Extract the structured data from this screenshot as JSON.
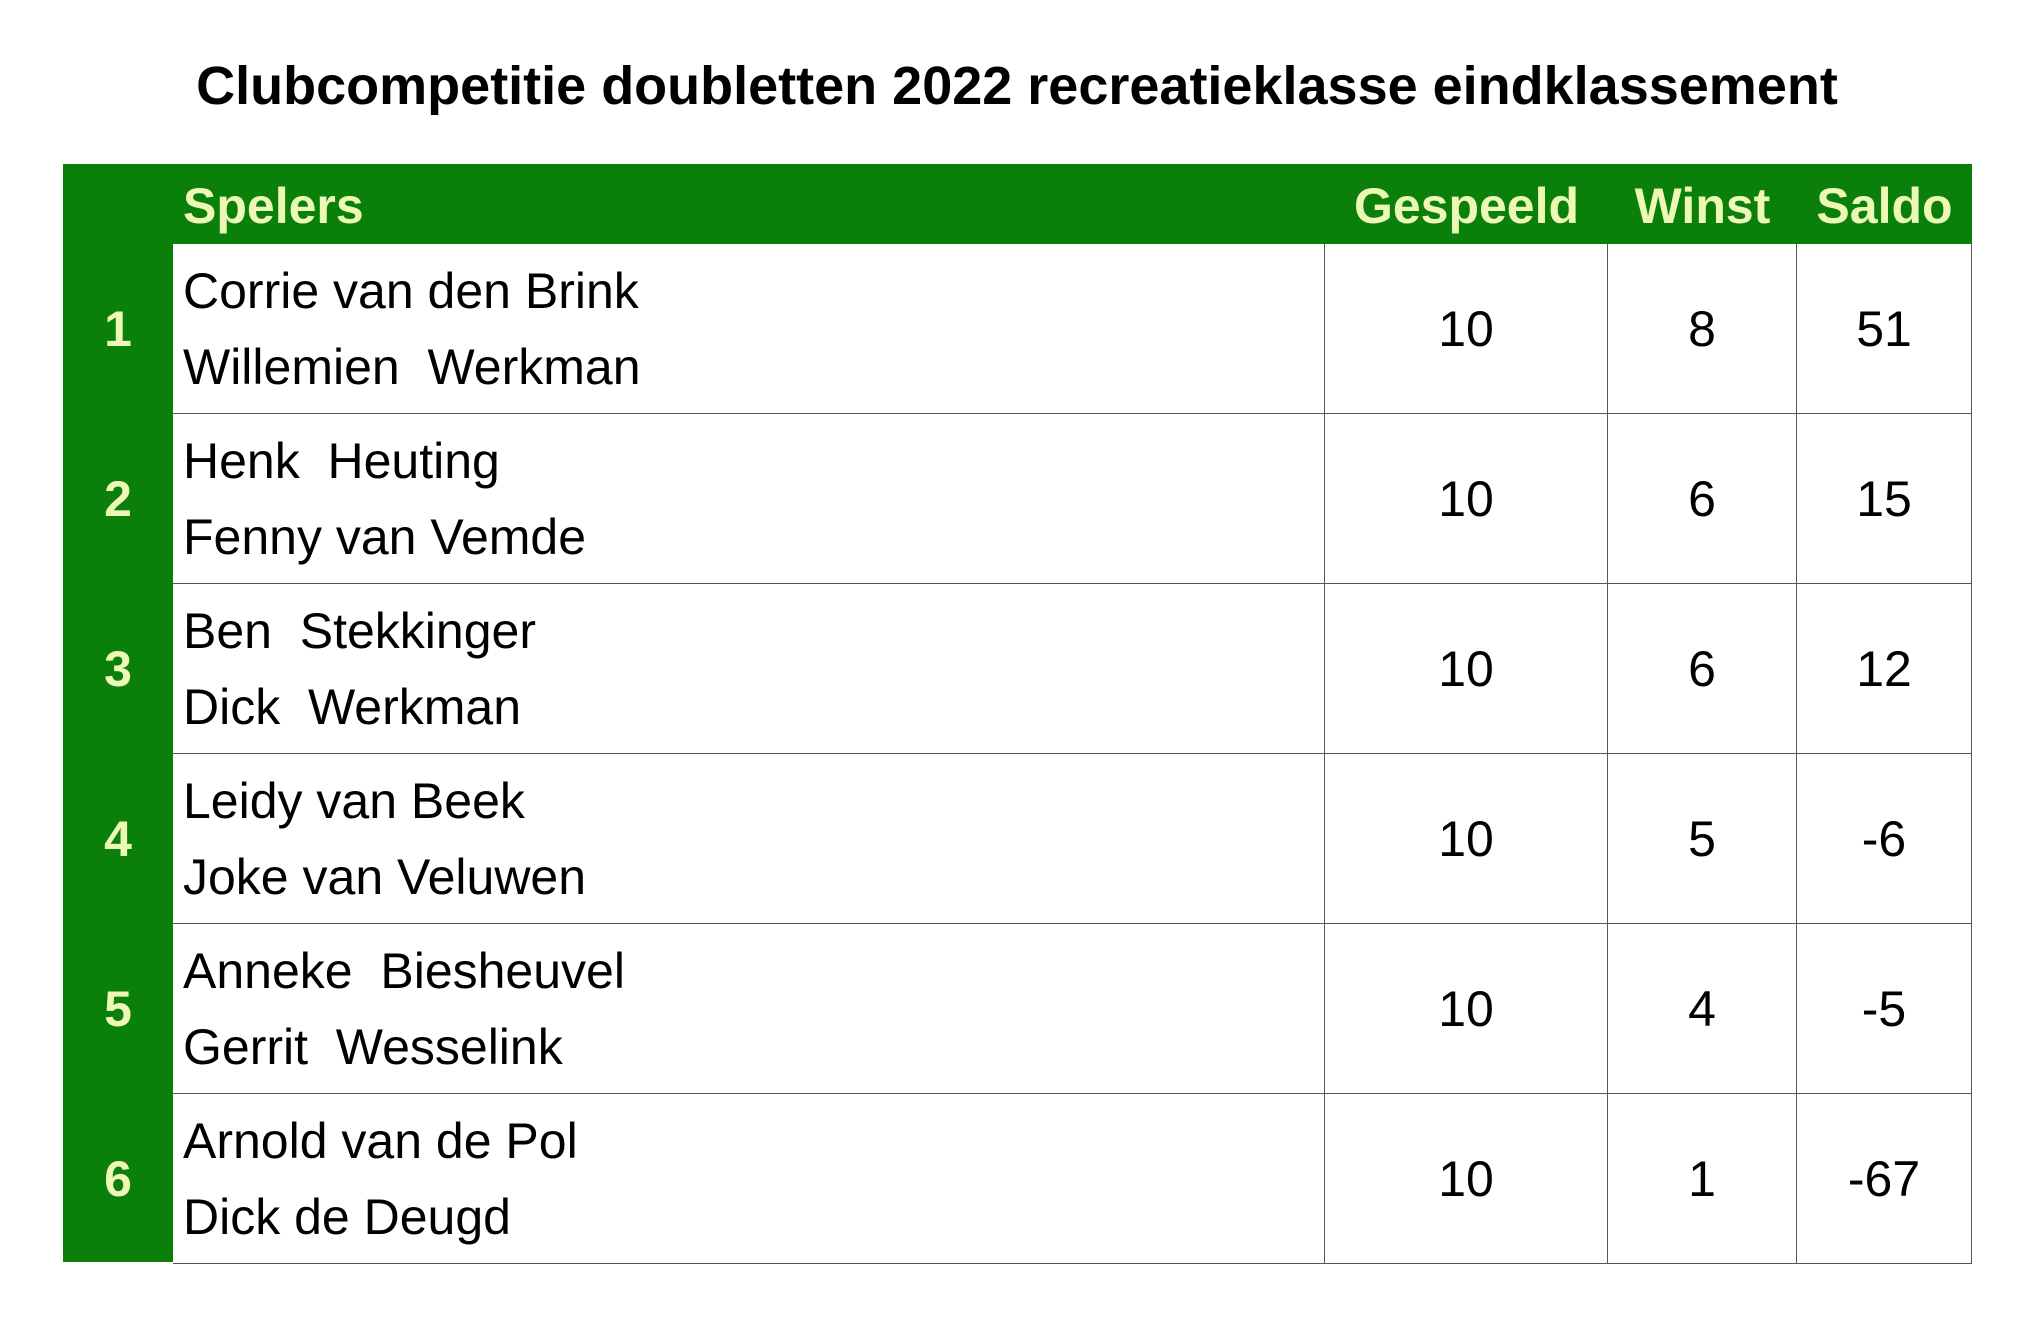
{
  "title": "Clubcompetitie doubletten 2022 recreatieklasse eindklassement",
  "table": {
    "header": [
      "Spelers",
      "Gespeeld",
      "Winst",
      "Saldo"
    ],
    "rows": [
      {
        "rank": 1,
        "players": [
          "Corrie van den Brink",
          "Willemien  Werkman"
        ],
        "gespeeld": 10,
        "winst": 8,
        "saldo": 51
      },
      {
        "rank": 2,
        "players": [
          "Henk  Heuting",
          "Fenny van Vemde"
        ],
        "gespeeld": 10,
        "winst": 6,
        "saldo": 15
      },
      {
        "rank": 3,
        "players": [
          "Ben  Stekkinger",
          "Dick  Werkman"
        ],
        "gespeeld": 10,
        "winst": 6,
        "saldo": 12
      },
      {
        "rank": 4,
        "players": [
          "Leidy van Beek",
          "Joke van Veluwen"
        ],
        "gespeeld": 10,
        "winst": 5,
        "saldo": -6
      },
      {
        "rank": 5,
        "players": [
          "Anneke  Biesheuvel",
          "Gerrit  Wesselink"
        ],
        "gespeeld": 10,
        "winst": 4,
        "saldo": -5
      },
      {
        "rank": 6,
        "players": [
          "Arnold van de Pol",
          "Dick de Deugd"
        ],
        "gespeeld": 10,
        "winst": 1,
        "saldo": -67
      }
    ]
  }
}
